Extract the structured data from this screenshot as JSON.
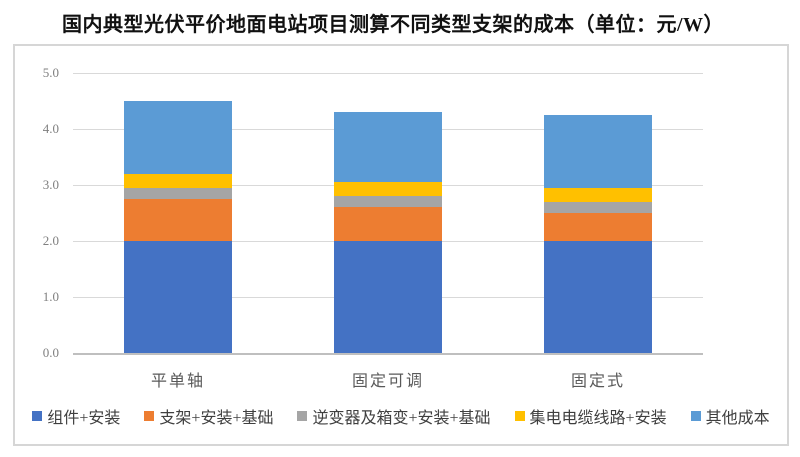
{
  "title": "国内典型光伏平价地面电站项目测算不同类型支架的成本（单位：元/W）",
  "chart_data": {
    "type": "bar",
    "stacked": true,
    "title": "国内典型光伏平价地面电站项目测算不同类型支架的成本",
    "unit": "元/W",
    "categories": [
      "平单轴",
      "固定可调",
      "固定式"
    ],
    "series": [
      {
        "name": "组件+安装",
        "color": "#4472C4",
        "values": [
          2.0,
          2.0,
          2.0
        ]
      },
      {
        "name": "支架+安装+基础",
        "color": "#ED7D31",
        "values": [
          0.75,
          0.6,
          0.5
        ]
      },
      {
        "name": "逆变器及箱变+安装+基础",
        "color": "#A5A5A5",
        "values": [
          0.2,
          0.2,
          0.2
        ]
      },
      {
        "name": "集电电缆线路+安装",
        "color": "#FFC000",
        "values": [
          0.25,
          0.25,
          0.25
        ]
      },
      {
        "name": "其他成本",
        "color": "#5B9BD5",
        "values": [
          1.3,
          1.25,
          1.3
        ]
      }
    ],
    "totals": [
      4.5,
      4.3,
      4.25
    ],
    "ylim": [
      0,
      5
    ],
    "yticks": [
      0,
      1,
      2,
      3,
      4,
      5
    ],
    "ytick_labels": [
      "0.0",
      "1.0",
      "2.0",
      "3.0",
      "4.0",
      "5.0"
    ],
    "grid": true,
    "legend_position": "bottom"
  },
  "style_colors": {
    "gridline": "#d9d9d9",
    "axis_line": "#bfbfbf",
    "tick_label": "#7f7f7f",
    "category_label": "#595959",
    "legend_label": "#3f3f3f",
    "frame_border": "#d6d6d6"
  }
}
